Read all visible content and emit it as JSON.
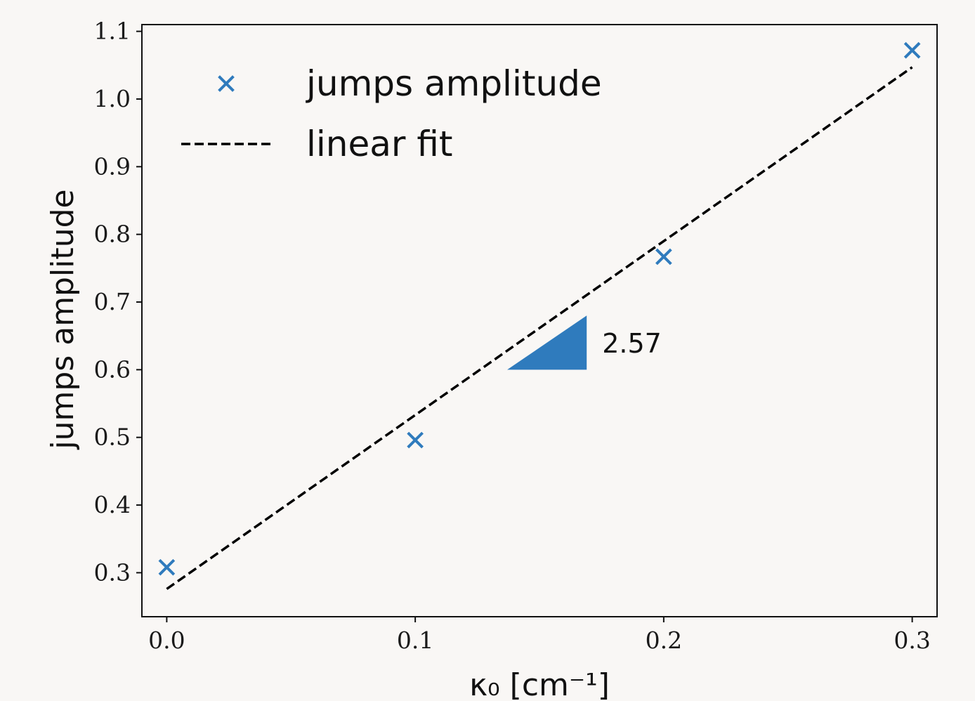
{
  "chart_data": {
    "type": "scatter",
    "xlabel": "κ₀ [cm⁻¹]",
    "ylabel": "jumps amplitude",
    "xlim": [
      -0.01,
      0.31
    ],
    "ylim": [
      0.235,
      1.11
    ],
    "xticks": [
      0.0,
      0.1,
      0.2,
      0.3
    ],
    "xtick_labels": [
      "0.0",
      "0.1",
      "0.2",
      "0.3"
    ],
    "yticks": [
      0.3,
      0.4,
      0.5,
      0.6,
      0.7,
      0.8,
      0.9,
      1.0,
      1.1
    ],
    "ytick_labels": [
      "0.3",
      "0.4",
      "0.5",
      "0.6",
      "0.7",
      "0.8",
      "0.9",
      "1.0",
      "1.1"
    ],
    "grid": false,
    "legend_position": "top-left",
    "series": [
      {
        "name": "jumps amplitude",
        "kind": "scatter",
        "marker": "x",
        "color": "#2f7bbd",
        "x": [
          0.0,
          0.1,
          0.2,
          0.3
        ],
        "y": [
          0.308,
          0.496,
          0.767,
          1.072
        ]
      },
      {
        "name": "linear fit",
        "kind": "line",
        "style": "dashed",
        "color": "#000000",
        "x": [
          0.0,
          0.3
        ],
        "y": [
          0.276,
          1.047
        ]
      }
    ],
    "annotations": [
      {
        "kind": "slope-triangle",
        "text": "2.57",
        "color": "#2f7bbd",
        "x": [
          0.137,
          0.169
        ],
        "y": [
          0.6,
          0.68
        ]
      }
    ]
  }
}
